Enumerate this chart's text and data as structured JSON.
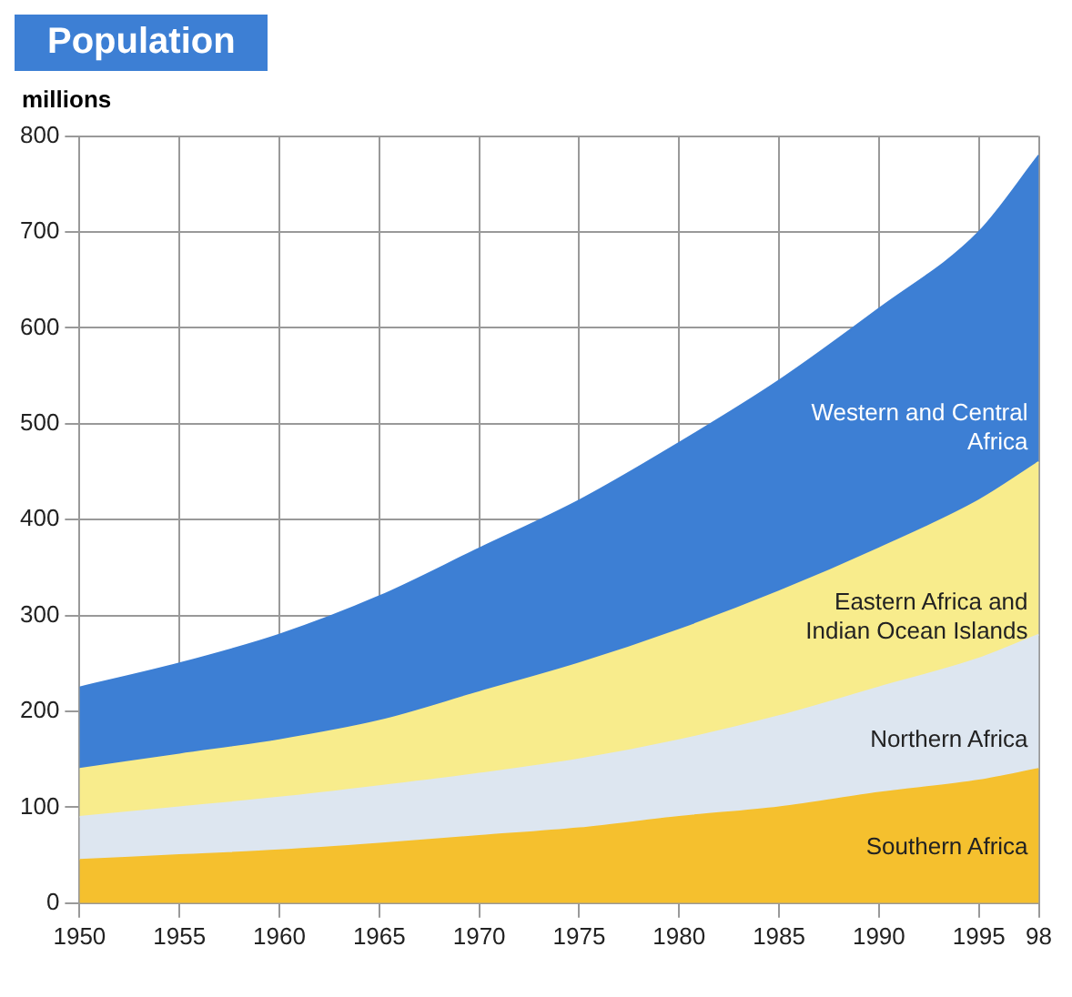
{
  "chart_data": {
    "type": "area",
    "title": "Population",
    "ylabel": "millions",
    "stacked": true,
    "grid": true,
    "legend": false,
    "x": [
      1950,
      1955,
      1960,
      1965,
      1970,
      1975,
      1980,
      1985,
      1990,
      1995,
      1998
    ],
    "xlim": [
      1950,
      1998
    ],
    "xticks": [
      1950,
      1955,
      1960,
      1965,
      1970,
      1975,
      1980,
      1985,
      1990,
      1995,
      {
        "value": 1998,
        "label": "98"
      }
    ],
    "ylim": [
      0,
      800
    ],
    "yticks": [
      0,
      100,
      200,
      300,
      400,
      500,
      600,
      700,
      800
    ],
    "series": [
      {
        "name": "Southern Africa",
        "color": "#f5c02e",
        "values": [
          45,
          50,
          55,
          62,
          70,
          78,
          90,
          100,
          115,
          128,
          140
        ]
      },
      {
        "name": "Northern Africa",
        "color": "#dde6f0",
        "values": [
          45,
          50,
          55,
          60,
          65,
          72,
          80,
          95,
          110,
          127,
          140
        ]
      },
      {
        "name": "Eastern Africa and Indian Ocean Islands",
        "color": "#f8ec8c",
        "values": [
          50,
          55,
          60,
          68,
          85,
          100,
          115,
          130,
          145,
          165,
          180
        ]
      },
      {
        "name": "Western and Central Africa",
        "color": "#3d7fd4",
        "values": [
          85,
          95,
          110,
          130,
          150,
          170,
          195,
          220,
          250,
          280,
          320
        ]
      }
    ]
  }
}
